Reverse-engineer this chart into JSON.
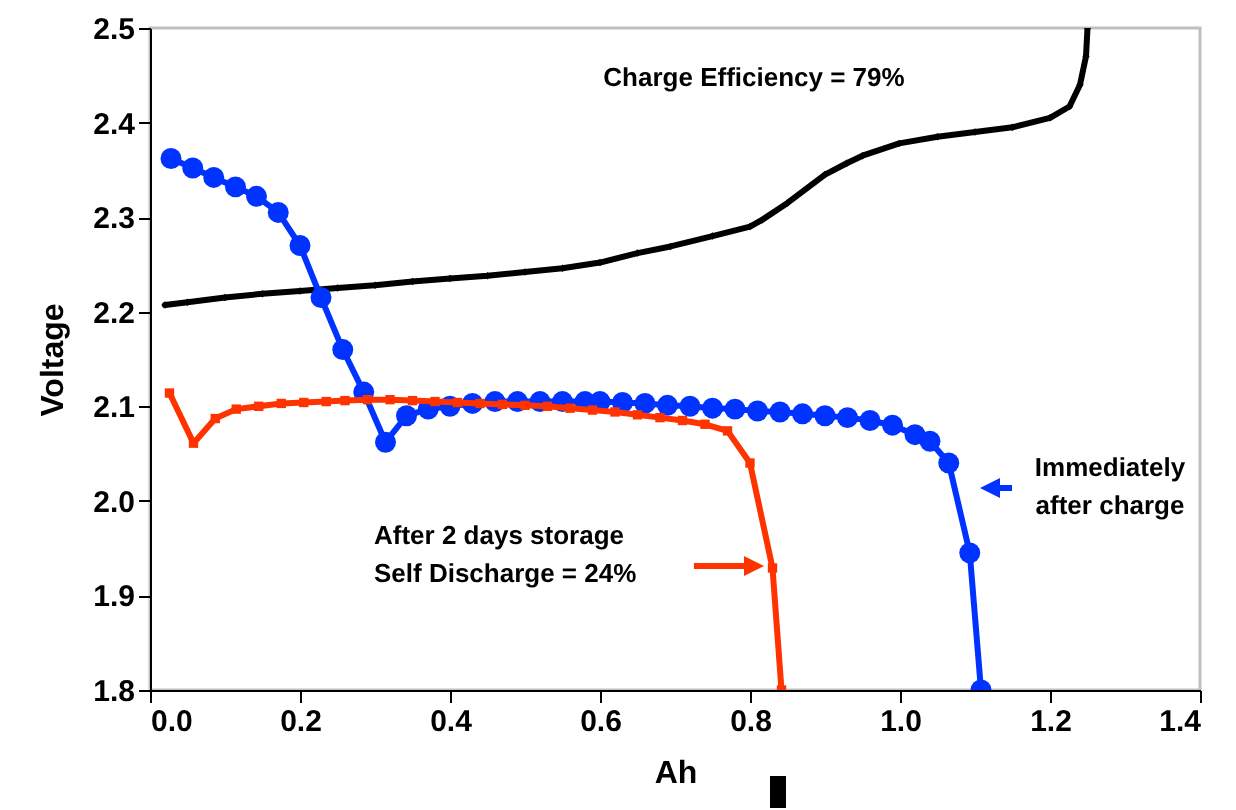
{
  "chart_data": {
    "type": "line",
    "xlabel": "Ah",
    "ylabel": "Voltage",
    "xlim": [
      0,
      1.4
    ],
    "ylim": [
      1.8,
      2.5
    ],
    "xticks": [
      {
        "value": 0,
        "label": "0.0"
      },
      0.2,
      0.4,
      0.6,
      0.8,
      {
        "value": 1,
        "label": "1.0"
      },
      1.2,
      1.4
    ],
    "yticks": [
      1.8,
      1.9,
      {
        "value": 2,
        "label": "2.0"
      },
      2.1,
      2.2,
      2.3,
      2.4,
      2.5
    ],
    "series": [
      {
        "color": "#000000",
        "marker": "diamond",
        "x": [
          0.02,
          0.05,
          0.1,
          0.15,
          0.2,
          0.25,
          0.3,
          0.35,
          0.4,
          0.45,
          0.5,
          0.55,
          0.6,
          0.65,
          0.694,
          0.75,
          0.8,
          0.816,
          0.85,
          0.9,
          0.929,
          0.95,
          0.999,
          1.05,
          1.1,
          1.15,
          1.2,
          1.226,
          1.24,
          1.248,
          1.25
        ],
        "values": [
          2.207,
          2.21,
          2.215,
          2.219,
          2.222,
          2.225,
          2.228,
          2.232,
          2.235,
          2.238,
          2.242,
          2.246,
          2.252,
          2.262,
          2.269,
          2.28,
          2.29,
          2.297,
          2.315,
          2.345,
          2.357,
          2.365,
          2.378,
          2.385,
          2.39,
          2.395,
          2.405,
          2.417,
          2.44,
          2.47,
          2.5
        ]
      },
      {
        "color": "#0033ff",
        "marker": "circle",
        "x": [
          0.028,
          0.057,
          0.085,
          0.114,
          0.142,
          0.171,
          0.2,
          0.228,
          0.257,
          0.285,
          0.314,
          0.342,
          0.371,
          0.4,
          0.43,
          0.46,
          0.49,
          0.52,
          0.55,
          0.58,
          0.6,
          0.63,
          0.66,
          0.69,
          0.72,
          0.75,
          0.78,
          0.81,
          0.84,
          0.87,
          0.9,
          0.93,
          0.96,
          0.99,
          1.02,
          1.04,
          1.065,
          1.093,
          1.108
        ],
        "values": [
          2.362,
          2.352,
          2.342,
          2.332,
          2.322,
          2.305,
          2.27,
          2.215,
          2.16,
          2.115,
          2.062,
          2.09,
          2.097,
          2.1,
          2.103,
          2.105,
          2.105,
          2.105,
          2.105,
          2.105,
          2.105,
          2.104,
          2.103,
          2.101,
          2.1,
          2.098,
          2.097,
          2.095,
          2.094,
          2.092,
          2.09,
          2.088,
          2.085,
          2.08,
          2.07,
          2.063,
          2.04,
          1.945,
          1.8
        ]
      },
      {
        "color": "#ff3300",
        "marker": "square",
        "x": [
          0.026,
          0.058,
          0.087,
          0.115,
          0.145,
          0.175,
          0.205,
          0.235,
          0.26,
          0.29,
          0.32,
          0.35,
          0.38,
          0.41,
          0.44,
          0.47,
          0.5,
          0.53,
          0.56,
          0.59,
          0.62,
          0.65,
          0.68,
          0.71,
          0.74,
          0.77,
          0.8,
          0.83,
          0.842
        ],
        "values": [
          2.114,
          2.061,
          2.087,
          2.097,
          2.1,
          2.103,
          2.104,
          2.105,
          2.106,
          2.107,
          2.107,
          2.106,
          2.105,
          2.104,
          2.103,
          2.102,
          2.101,
          2.1,
          2.098,
          2.096,
          2.094,
          2.091,
          2.088,
          2.085,
          2.081,
          2.074,
          2.04,
          1.929,
          1.8
        ]
      }
    ],
    "annotations": [
      "Charge Efficiency = 79%",
      "After 2 days storage\nSelf Discharge = 24%",
      "Immediately\nafter charge"
    ]
  }
}
